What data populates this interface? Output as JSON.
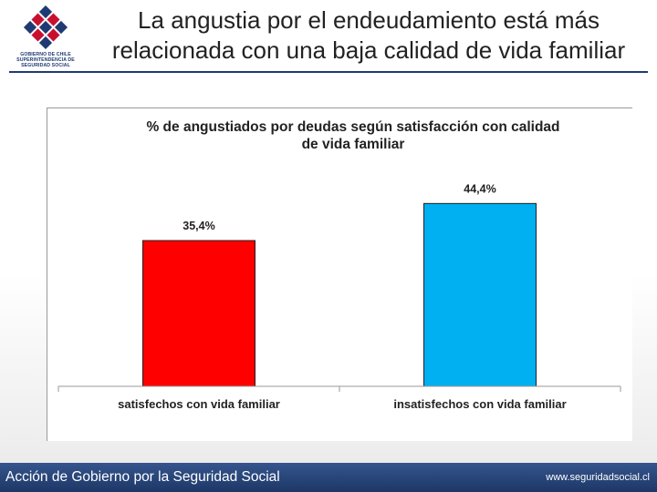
{
  "header": {
    "title": "La angustia por el endeudamiento está más relacionada con una baja calidad de vida familiar",
    "logo_lines": [
      "GOBIERNO DE CHILE",
      "SUPERINTENDENCIA DE",
      "SEGURIDAD SOCIAL"
    ]
  },
  "chart_data": {
    "type": "bar",
    "title_lines": [
      "% de angustiados por deudas según satisfacción con calidad",
      "de vida familiar"
    ],
    "categories": [
      "satisfechos con vida familiar",
      "insatisfechos con vida familiar"
    ],
    "values": [
      35.4,
      44.4
    ],
    "value_labels": [
      "35,4%",
      "44,4%"
    ],
    "colors": [
      "#ff0000",
      "#00b0f0"
    ],
    "ylim": [
      0,
      52
    ],
    "xlabel": "",
    "ylabel": "",
    "grid": false
  },
  "footer": {
    "left_text": "Acción de Gobierno por la Seguridad Social",
    "right_text": "www.seguridadsocial.cl"
  }
}
